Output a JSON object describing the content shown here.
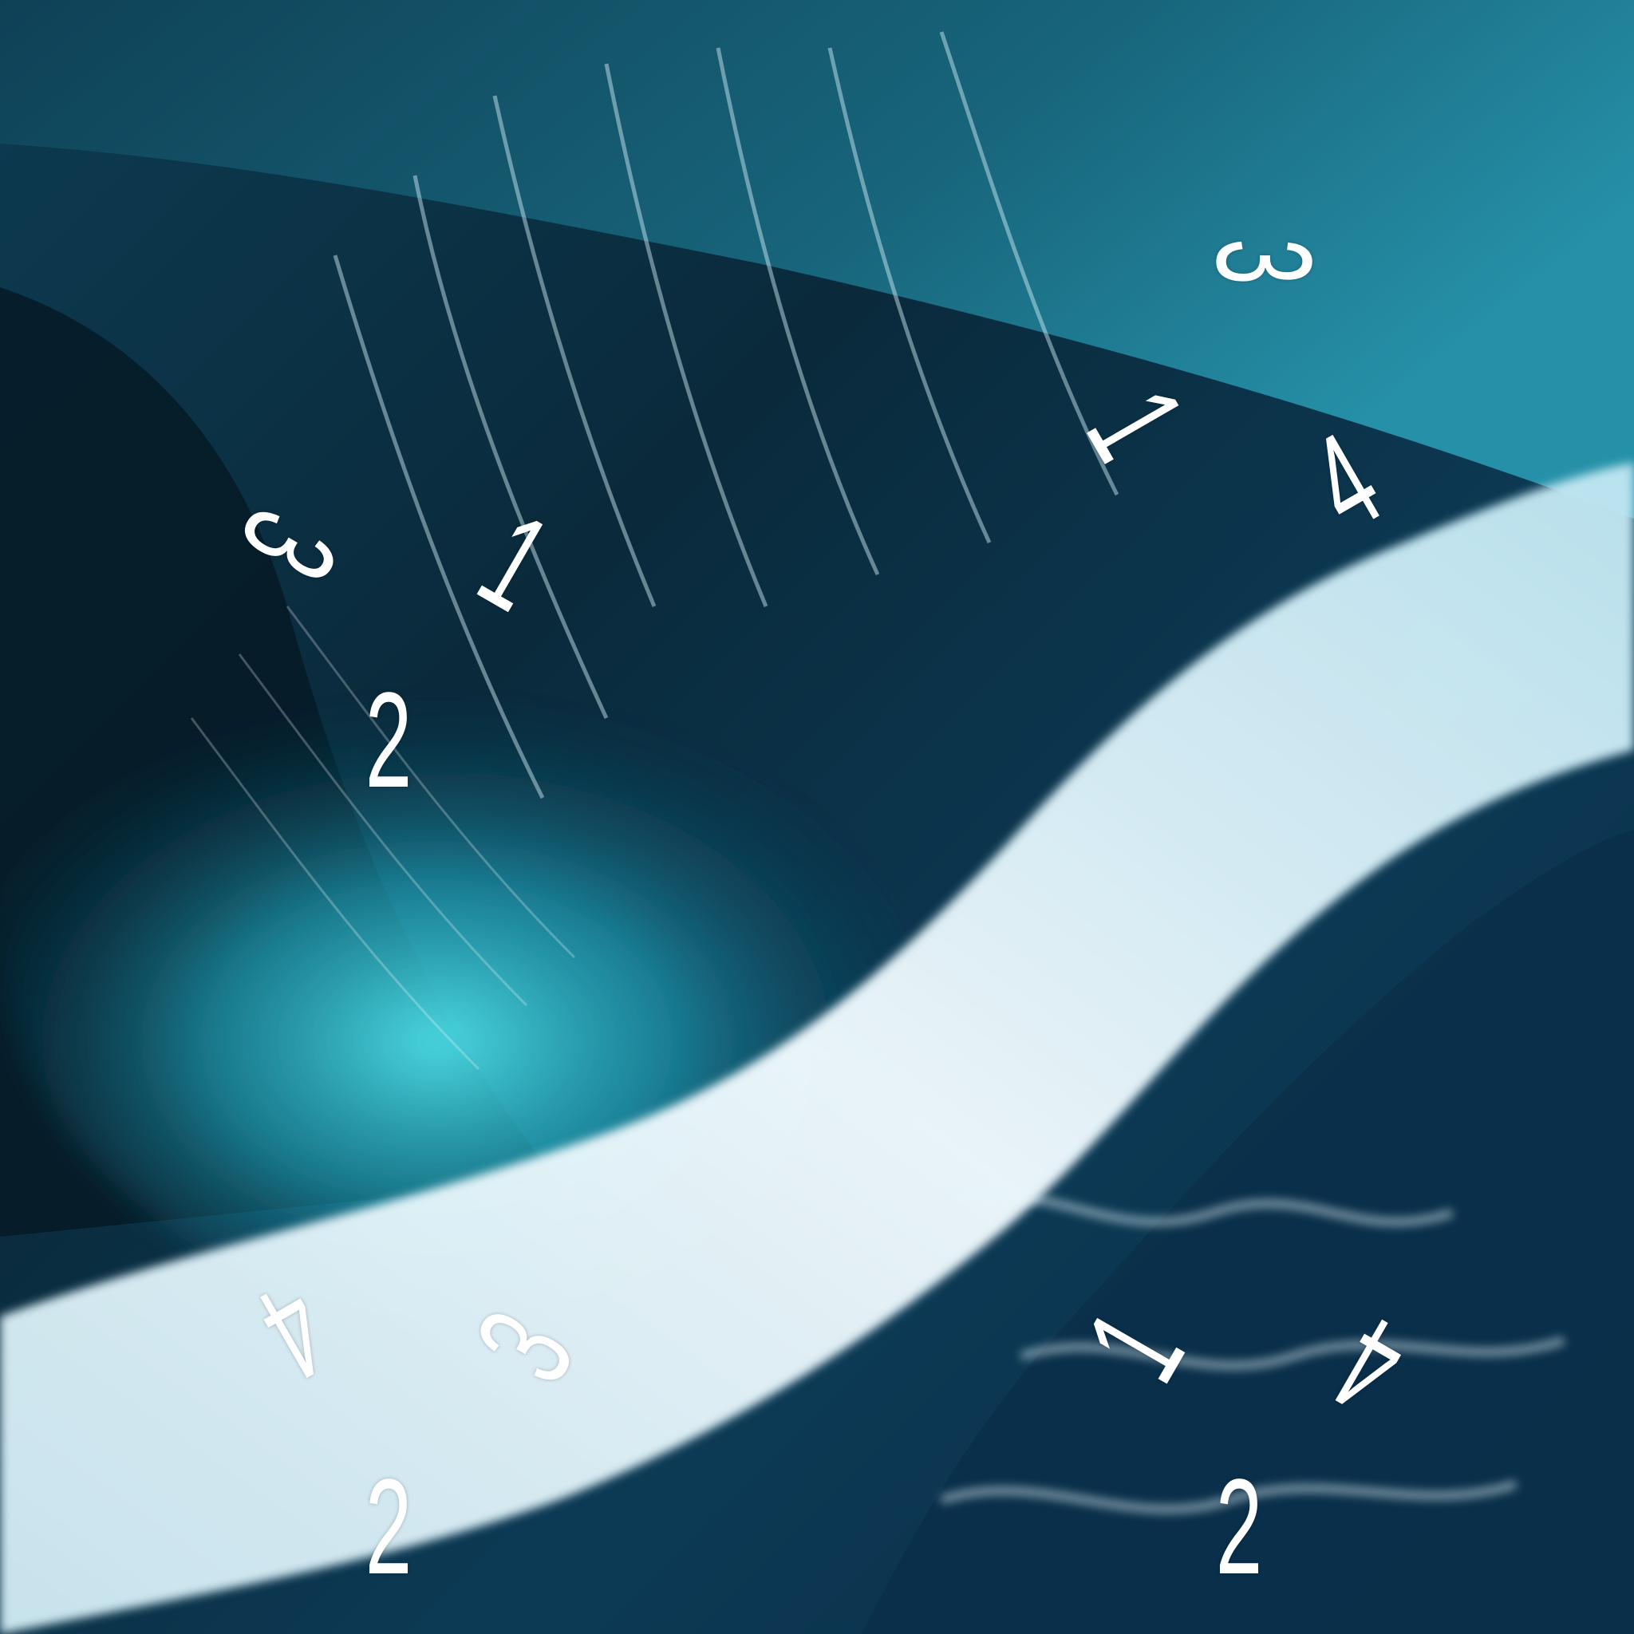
{
  "palette": {
    "deep_water": "#071e2c",
    "teal": "#2ab8c9",
    "cyan_glow": "#55e0e8",
    "foam": "#e9f6fb",
    "dark_blue": "#0b2f4a"
  },
  "overlay_digits": [
    {
      "id": "d1",
      "text": "3"
    },
    {
      "id": "d2",
      "text": "1"
    },
    {
      "id": "d3",
      "text": "4"
    },
    {
      "id": "d4",
      "text": "3"
    },
    {
      "id": "d5",
      "text": "1"
    },
    {
      "id": "d6",
      "text": "2"
    },
    {
      "id": "d7",
      "text": "4"
    },
    {
      "id": "d8",
      "text": "3"
    },
    {
      "id": "d9",
      "text": "2"
    },
    {
      "id": "d10",
      "text": "1"
    },
    {
      "id": "d11",
      "text": "4"
    },
    {
      "id": "d12",
      "text": "2"
    }
  ]
}
